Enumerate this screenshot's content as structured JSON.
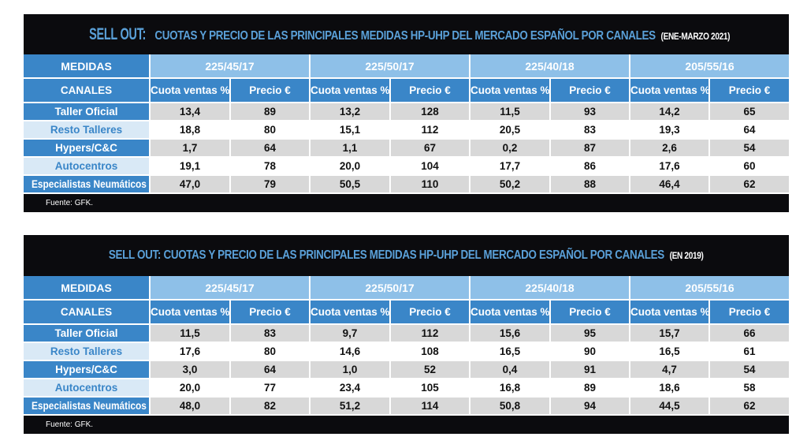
{
  "tables": [
    {
      "title_prefix": "SELL OUT:",
      "title_main": "CUOTAS Y PRECIO DE LAS PRINCIPALES MEDIDAS HP-UHP DEL MERCADO ESPAÑOL POR CANALES",
      "title_period": "(ENE-MARZO 2021)",
      "medidas_label": "MEDIDAS",
      "canales_label": "CANALES",
      "sizes": [
        "225/45/17",
        "225/50/17",
        "225/40/18",
        "205/55/16"
      ],
      "sub_headers": [
        "Cuota ventas %",
        "Precio €"
      ],
      "rows": [
        {
          "canal": "Taller Oficial",
          "values": [
            "13,4",
            "89",
            "13,2",
            "128",
            "11,5",
            "93",
            "14,2",
            "65"
          ]
        },
        {
          "canal": "Resto Talleres",
          "values": [
            "18,8",
            "80",
            "15,1",
            "112",
            "20,5",
            "83",
            "19,3",
            "64"
          ]
        },
        {
          "canal": "Hypers/C&C",
          "values": [
            "1,7",
            "64",
            "1,1",
            "67",
            "0,2",
            "87",
            "2,6",
            "54"
          ]
        },
        {
          "canal": "Autocentros",
          "values": [
            "19,1",
            "78",
            "20,0",
            "104",
            "17,7",
            "86",
            "17,6",
            "60"
          ]
        },
        {
          "canal": "Especialistas Neumáticos",
          "values": [
            "47,0",
            "79",
            "50,5",
            "110",
            "50,2",
            "88",
            "46,4",
            "62"
          ]
        }
      ],
      "source": "Fuente: GFK."
    },
    {
      "title_prefix": "SELL OUT:",
      "title_main": "CUOTAS Y PRECIO DE LAS PRINCIPALES MEDIDAS HP-UHP DEL MERCADO ESPAÑOL POR CANALES",
      "title_period": "(EN 2019)",
      "medidas_label": "MEDIDAS",
      "canales_label": "CANALES",
      "sizes": [
        "225/45/17",
        "225/50/17",
        "225/40/18",
        "205/55/16"
      ],
      "sub_headers": [
        "Cuota ventas %",
        "Precio €"
      ],
      "rows": [
        {
          "canal": "Taller Oficial",
          "values": [
            "11,5",
            "83",
            "9,7",
            "112",
            "15,6",
            "95",
            "15,7",
            "66"
          ]
        },
        {
          "canal": "Resto Talleres",
          "values": [
            "17,6",
            "80",
            "14,6",
            "108",
            "16,5",
            "90",
            "16,5",
            "61"
          ]
        },
        {
          "canal": "Hypers/C&C",
          "values": [
            "3,0",
            "64",
            "1,0",
            "52",
            "0,4",
            "91",
            "4,7",
            "54"
          ]
        },
        {
          "canal": "Autocentros",
          "values": [
            "20,0",
            "77",
            "23,4",
            "105",
            "16,8",
            "89",
            "18,6",
            "58"
          ]
        },
        {
          "canal": "Especialistas Neumáticos",
          "values": [
            "48,0",
            "82",
            "51,2",
            "114",
            "50,8",
            "94",
            "44,5",
            "62"
          ]
        }
      ],
      "source": "Fuente: GFK."
    }
  ]
}
